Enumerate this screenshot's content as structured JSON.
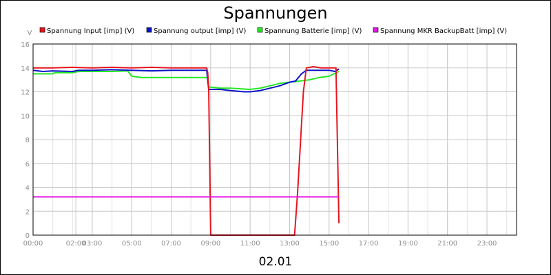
{
  "chart_data": {
    "type": "line",
    "title": "Spannungen",
    "xlabel": "02.01",
    "ylabel": "V",
    "xlim": [
      0,
      24.5
    ],
    "ylim": [
      0,
      16
    ],
    "y_ticks": [
      0,
      2,
      4,
      6,
      8,
      10,
      12,
      14,
      16
    ],
    "x_ticks": [
      {
        "x": 0,
        "label": "00:00"
      },
      {
        "x": 2.167,
        "label": "02:00"
      },
      {
        "x": 3,
        "label": "03:00"
      },
      {
        "x": 5,
        "label": "05:00"
      },
      {
        "x": 7,
        "label": "07:00"
      },
      {
        "x": 9,
        "label": "09:00"
      },
      {
        "x": 11,
        "label": "11:00"
      },
      {
        "x": 13,
        "label": "13:00"
      },
      {
        "x": 15,
        "label": "15:00"
      },
      {
        "x": 17,
        "label": "17:00"
      },
      {
        "x": 19,
        "label": "19:00"
      },
      {
        "x": 21,
        "label": "21:00"
      },
      {
        "x": 23,
        "label": "23:00"
      }
    ],
    "grid": true,
    "legend_position": "top",
    "series": [
      {
        "name": "Spannung Input [imp] (V)",
        "color": "#e8141e",
        "points": [
          [
            0,
            14.0
          ],
          [
            1.0,
            14.0
          ],
          [
            2.0,
            14.05
          ],
          [
            3.0,
            14.0
          ],
          [
            4.0,
            14.05
          ],
          [
            5.0,
            14.0
          ],
          [
            6.0,
            14.05
          ],
          [
            7.0,
            14.0
          ],
          [
            8.0,
            14.0
          ],
          [
            8.8,
            14.0
          ],
          [
            8.85,
            13.6
          ],
          [
            8.9,
            12.3
          ],
          [
            9.0,
            0
          ],
          [
            10,
            0
          ],
          [
            11,
            0
          ],
          [
            12,
            0
          ],
          [
            13.0,
            0
          ],
          [
            13.25,
            0
          ],
          [
            13.4,
            3.5
          ],
          [
            13.7,
            12.0
          ],
          [
            13.85,
            14.0
          ],
          [
            14.2,
            14.1
          ],
          [
            14.6,
            14.0
          ],
          [
            15.0,
            14.0
          ],
          [
            15.35,
            14.0
          ],
          [
            15.5,
            1.0
          ]
        ]
      },
      {
        "name": "Spannung output [imp] (V)",
        "color": "#0a14c8",
        "points": [
          [
            0,
            13.8
          ],
          [
            0.5,
            13.7
          ],
          [
            1.0,
            13.75
          ],
          [
            2.0,
            13.7
          ],
          [
            2.3,
            13.8
          ],
          [
            3.0,
            13.8
          ],
          [
            4.0,
            13.85
          ],
          [
            5.0,
            13.8
          ],
          [
            6.0,
            13.75
          ],
          [
            7.0,
            13.8
          ],
          [
            8.0,
            13.8
          ],
          [
            8.8,
            13.8
          ],
          [
            8.9,
            12.2
          ],
          [
            9.5,
            12.2
          ],
          [
            10.0,
            12.1
          ],
          [
            10.7,
            12.0
          ],
          [
            11.0,
            12.0
          ],
          [
            11.5,
            12.1
          ],
          [
            12.0,
            12.3
          ],
          [
            12.5,
            12.5
          ],
          [
            13.0,
            12.8
          ],
          [
            13.3,
            12.9
          ],
          [
            13.6,
            13.5
          ],
          [
            13.85,
            13.8
          ],
          [
            14.5,
            13.8
          ],
          [
            15.0,
            13.8
          ],
          [
            15.3,
            13.7
          ],
          [
            15.5,
            13.9
          ]
        ]
      },
      {
        "name": "Spannung Batterie [imp] (V)",
        "color": "#23e823",
        "points": [
          [
            0,
            13.5
          ],
          [
            1.0,
            13.5
          ],
          [
            1.1,
            13.6
          ],
          [
            2.0,
            13.6
          ],
          [
            2.3,
            13.7
          ],
          [
            3.0,
            13.7
          ],
          [
            4.0,
            13.7
          ],
          [
            4.8,
            13.75
          ],
          [
            5.0,
            13.3
          ],
          [
            5.5,
            13.2
          ],
          [
            6.0,
            13.2
          ],
          [
            7.0,
            13.2
          ],
          [
            8.0,
            13.2
          ],
          [
            8.85,
            13.2
          ],
          [
            8.9,
            12.4
          ],
          [
            9.5,
            12.3
          ],
          [
            10.0,
            12.3
          ],
          [
            11.0,
            12.2
          ],
          [
            11.5,
            12.3
          ],
          [
            12.0,
            12.5
          ],
          [
            12.5,
            12.7
          ],
          [
            13.0,
            12.8
          ],
          [
            13.5,
            12.9
          ],
          [
            14.0,
            13.0
          ],
          [
            14.5,
            13.2
          ],
          [
            15.0,
            13.3
          ],
          [
            15.5,
            13.7
          ]
        ]
      },
      {
        "name": "Spannung MKR BackupBatt [imp] (V)",
        "color": "#e614e6",
        "points": [
          [
            0,
            3.2
          ],
          [
            15.5,
            3.2
          ]
        ]
      }
    ]
  }
}
